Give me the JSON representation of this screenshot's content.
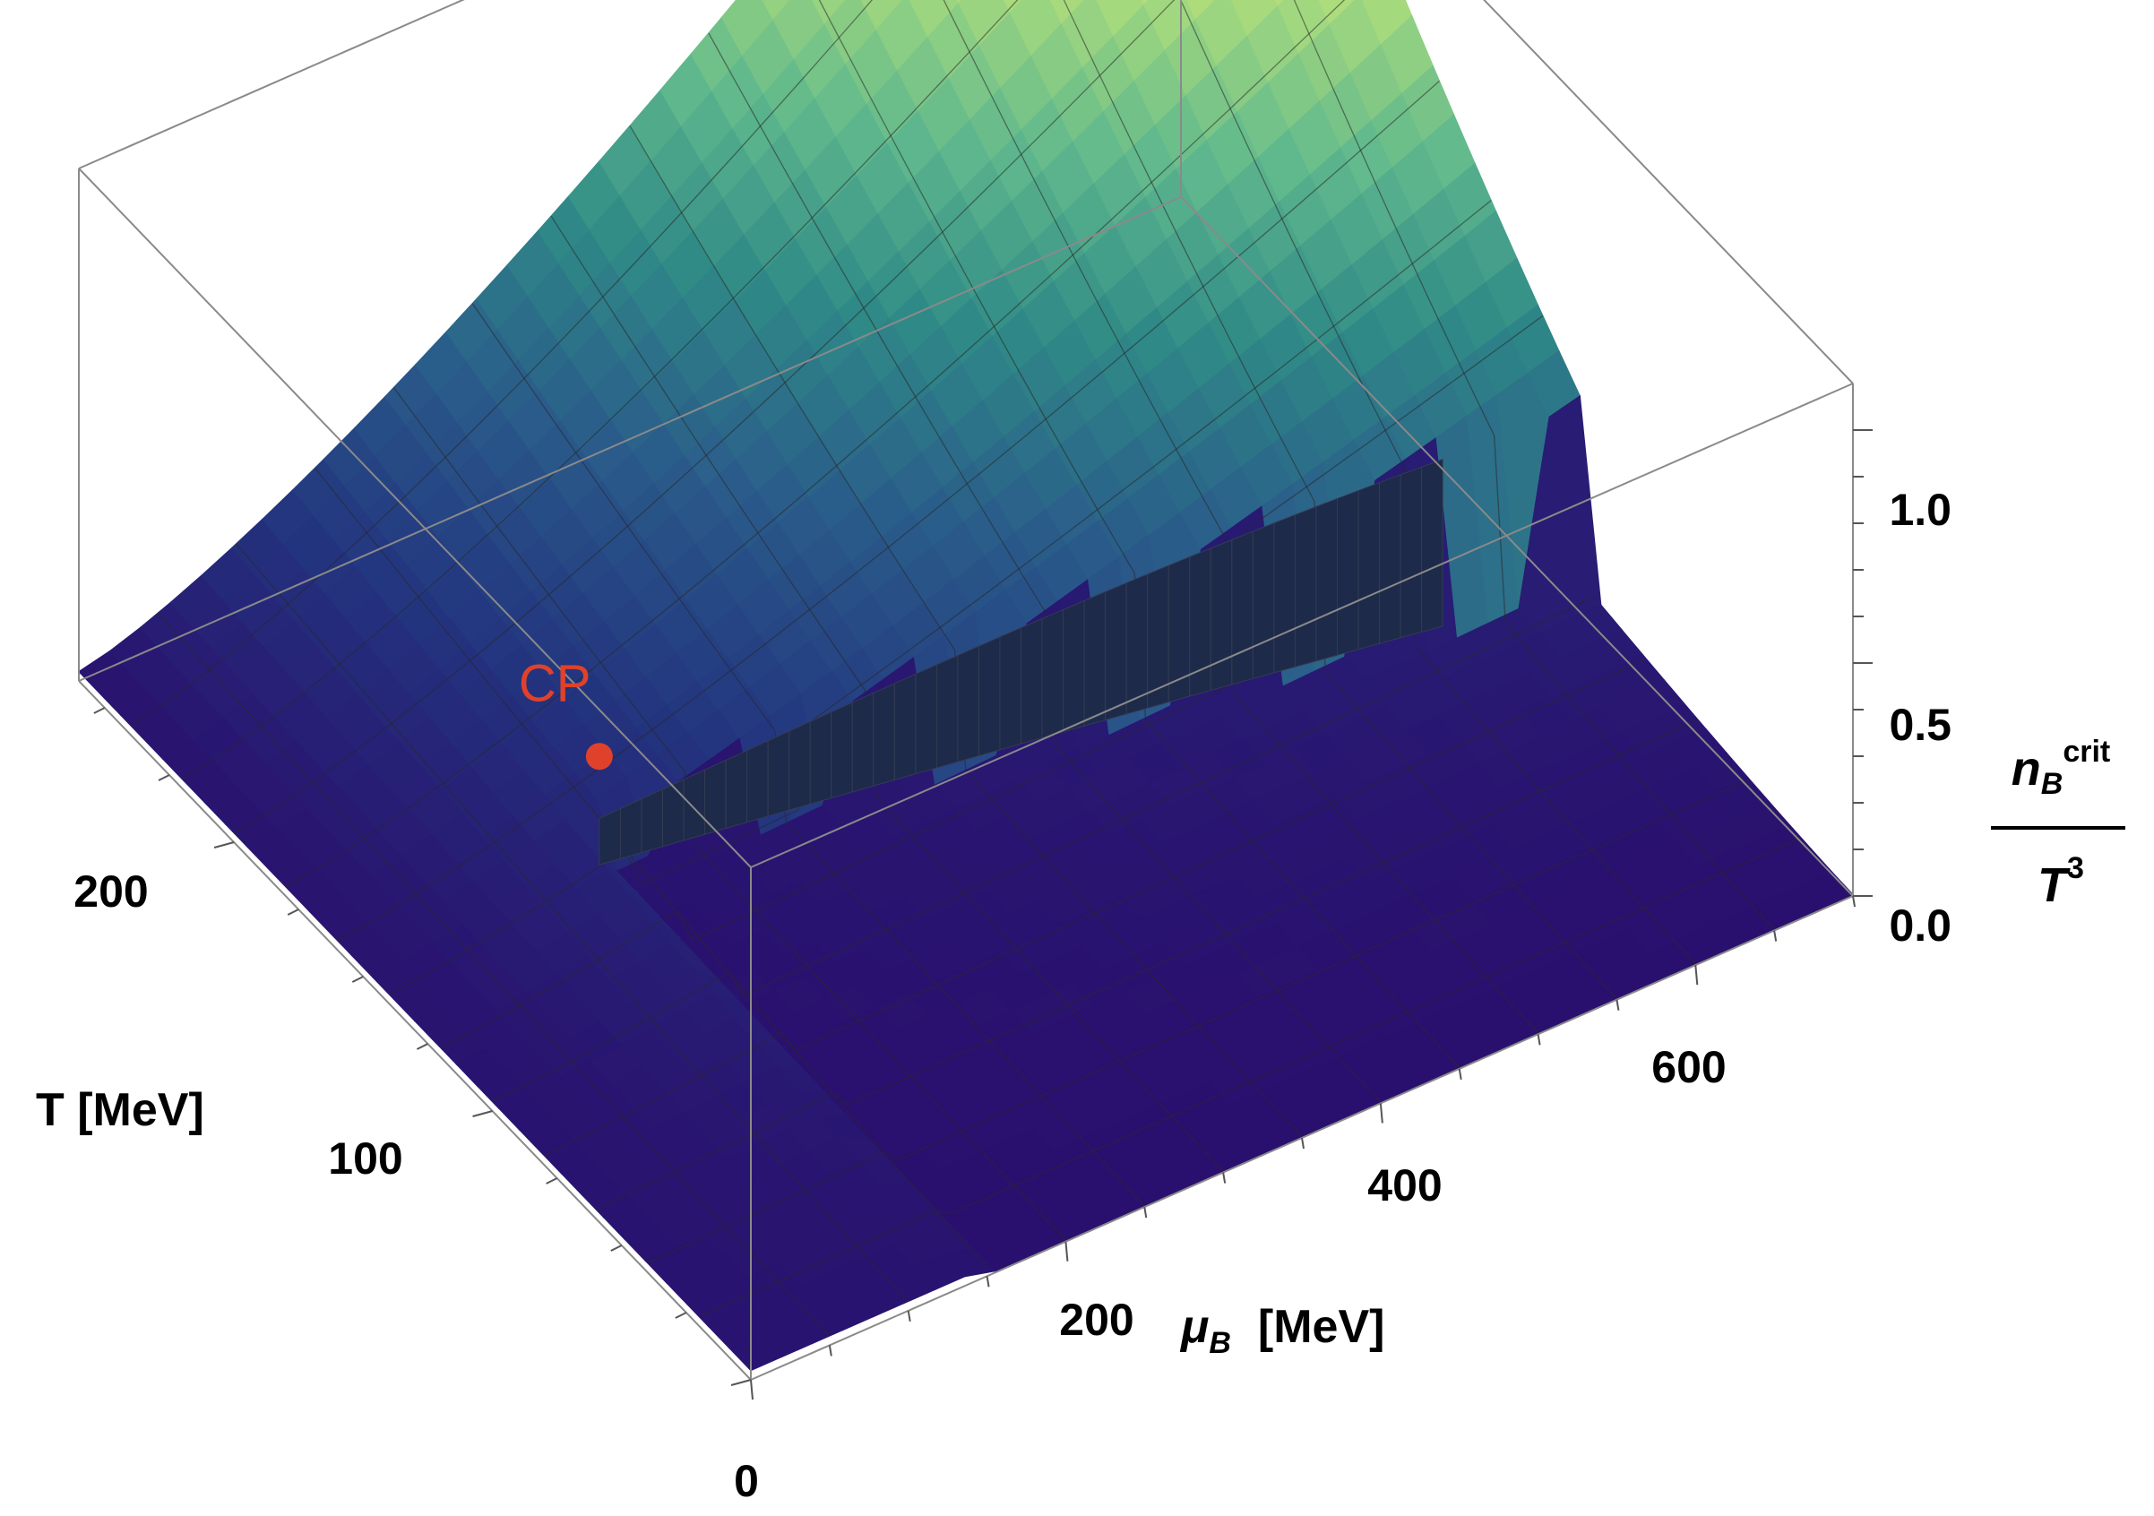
{
  "chart_data": {
    "type": "surface3d",
    "x_axis": {
      "label_symbol": "μ",
      "label_sub": "B",
      "label_unit": "[MeV]",
      "range": [
        0,
        700
      ],
      "ticks": [
        0,
        200,
        400,
        600
      ],
      "tick_labels": [
        "0",
        "200",
        "400",
        "600"
      ]
    },
    "y_axis": {
      "label": "T [MeV]",
      "range": [
        0,
        260
      ],
      "ticks": [
        100,
        200
      ],
      "tick_labels": [
        "100",
        "200"
      ]
    },
    "z_axis": {
      "range": [
        0,
        1.1
      ],
      "ticks": [
        0,
        0.5,
        1.0
      ],
      "tick_labels": [
        "0.0",
        "0.5",
        "1.0"
      ],
      "label_num": "n",
      "label_num_sub": "B",
      "label_num_sup": "crit",
      "label_den": "T",
      "label_den_sup": "3"
    },
    "critical_point": {
      "label": "CP",
      "mu_B": 150,
      "T": 150,
      "value": 0.25,
      "color": "#e0412b"
    },
    "first_order_line": {
      "mu_B_end": 620,
      "T_end": 110,
      "value_high": 0.55,
      "value_low": 0.26
    },
    "colormap": [
      "#2a0f6e",
      "#23357f",
      "#2a5c8a",
      "#2f8a87",
      "#5fb88d",
      "#a4d97e",
      "#e5ec6e"
    ],
    "grid": true
  }
}
